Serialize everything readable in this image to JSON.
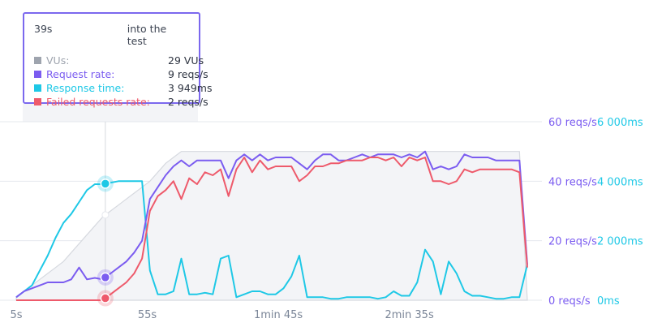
{
  "tooltip": {
    "time": "39s",
    "caption": "into the test",
    "rows": [
      {
        "label": "VUs:",
        "value": "29 VUs",
        "color": "#9ea4ae"
      },
      {
        "label": "Request rate:",
        "value": "9 reqs/s",
        "color": "#7b5cf0"
      },
      {
        "label": "Response time:",
        "value": "3 949ms",
        "color": "#1ec8e6"
      },
      {
        "label": "Failed requests rate:",
        "value": "2 reqs/s",
        "color": "#ee5a6b"
      }
    ]
  },
  "chart_data": {
    "type": "line",
    "x_ticks": [
      "5s",
      "55s",
      "1min 45s",
      "2min 35s"
    ],
    "x_range_seconds": [
      5,
      200
    ],
    "hover_x_seconds": 39,
    "y_left": {
      "ticks": [
        "0 reqs/s",
        "20 reqs/s",
        "40 reqs/s",
        "60 reqs/s"
      ],
      "range": [
        0,
        60
      ],
      "color": "#7b5cf0"
    },
    "y_right": {
      "ticks": [
        "0ms",
        "2 000ms",
        "4 000ms",
        "6 000ms"
      ],
      "range": [
        0,
        6000
      ],
      "color": "#1ec8e6"
    },
    "grid": true,
    "x": [
      5,
      8,
      11,
      14,
      17,
      20,
      23,
      26,
      29,
      32,
      35,
      38,
      41,
      44,
      47,
      50,
      53,
      56,
      59,
      62,
      65,
      68,
      71,
      74,
      77,
      80,
      83,
      86,
      89,
      92,
      95,
      98,
      101,
      104,
      107,
      110,
      113,
      116,
      119,
      122,
      125,
      128,
      131,
      134,
      137,
      140,
      143,
      146,
      149,
      152,
      155,
      158,
      161,
      164,
      167,
      170,
      173,
      176,
      179,
      182,
      185,
      188,
      191,
      194,
      197,
      200
    ],
    "series": [
      {
        "name": "VUs",
        "color": "#d6d9df",
        "axis": "left",
        "values": [
          1,
          3,
          5,
          7,
          9,
          11,
          13,
          16,
          19,
          22,
          25,
          28,
          30,
          32,
          34,
          36,
          38,
          40,
          43,
          46,
          48,
          50,
          50,
          50,
          50,
          50,
          50,
          50,
          50,
          50,
          50,
          50,
          50,
          50,
          50,
          50,
          50,
          50,
          50,
          50,
          50,
          50,
          50,
          50,
          50,
          50,
          50,
          50,
          50,
          50,
          50,
          50,
          50,
          50,
          50,
          50,
          50,
          50,
          50,
          50,
          50,
          50,
          50,
          50,
          50,
          0
        ]
      },
      {
        "name": "Request rate",
        "color": "#7b5cf0",
        "axis": "left",
        "values": [
          1,
          3,
          4,
          5,
          6,
          6,
          6,
          7,
          11,
          7,
          7.5,
          7,
          9,
          11,
          13,
          16,
          20,
          34,
          38,
          42,
          45,
          47,
          45,
          47,
          47,
          47,
          47,
          41,
          47,
          49,
          47,
          49,
          47,
          48,
          48,
          48,
          46,
          44,
          47,
          49,
          49,
          47,
          47,
          48,
          49,
          48,
          49,
          49,
          49,
          48,
          49,
          48,
          50,
          44,
          45,
          44,
          45,
          49,
          48,
          48,
          48,
          47,
          47,
          47,
          47,
          12
        ]
      },
      {
        "name": "Failed requests rate",
        "color": "#ee5a6b",
        "axis": "left",
        "values": [
          0,
          0,
          0,
          0,
          0,
          0,
          0,
          0,
          0,
          0,
          0,
          0,
          2,
          4,
          6,
          9,
          14,
          30,
          35,
          37,
          40,
          34,
          41,
          39,
          43,
          42,
          44,
          35,
          44,
          48,
          43,
          47,
          44,
          45,
          45,
          45,
          40,
          42,
          45,
          45,
          46,
          46,
          47,
          47,
          47,
          48,
          48,
          47,
          48,
          45,
          48,
          47,
          48,
          40,
          40,
          39,
          40,
          44,
          43,
          44,
          44,
          44,
          44,
          44,
          43,
          11
        ]
      },
      {
        "name": "Response time",
        "color": "#1ec8e6",
        "axis": "right",
        "values": [
          100,
          300,
          500,
          1000,
          1500,
          2100,
          2600,
          2900,
          3300,
          3700,
          3900,
          3900,
          3950,
          4000,
          4000,
          4000,
          4000,
          1000,
          200,
          200,
          300,
          1400,
          200,
          200,
          250,
          200,
          1400,
          1500,
          100,
          200,
          300,
          300,
          200,
          200,
          400,
          800,
          1500,
          100,
          100,
          100,
          50,
          50,
          100,
          100,
          100,
          100,
          50,
          100,
          300,
          150,
          150,
          600,
          1700,
          1300,
          200,
          1300,
          900,
          300,
          150,
          150,
          100,
          50,
          50,
          100,
          100,
          1200
        ]
      }
    ]
  }
}
